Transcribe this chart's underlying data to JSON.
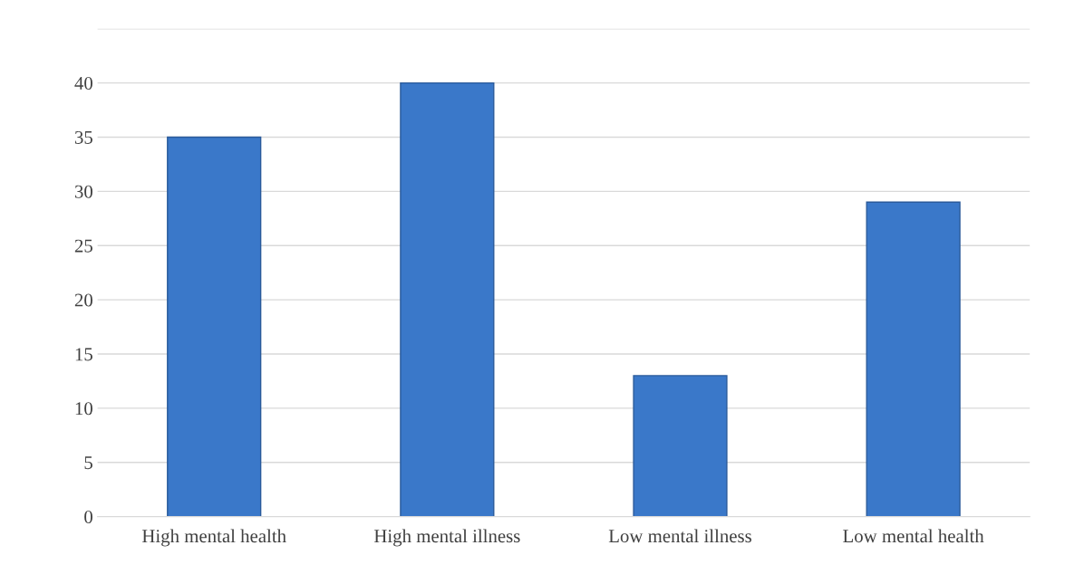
{
  "chart_data": {
    "type": "bar",
    "categories": [
      "High mental health",
      "High mental illness",
      "Low mental illness",
      "Low mental health"
    ],
    "values": [
      35,
      40,
      13,
      29
    ],
    "color": "#3a78c9",
    "ylim": [
      0,
      45
    ],
    "yticks": [
      0,
      5,
      10,
      15,
      20,
      25,
      30,
      35,
      40,
      {
        "value": 45,
        "label": null
      }
    ],
    "grid": "y"
  }
}
